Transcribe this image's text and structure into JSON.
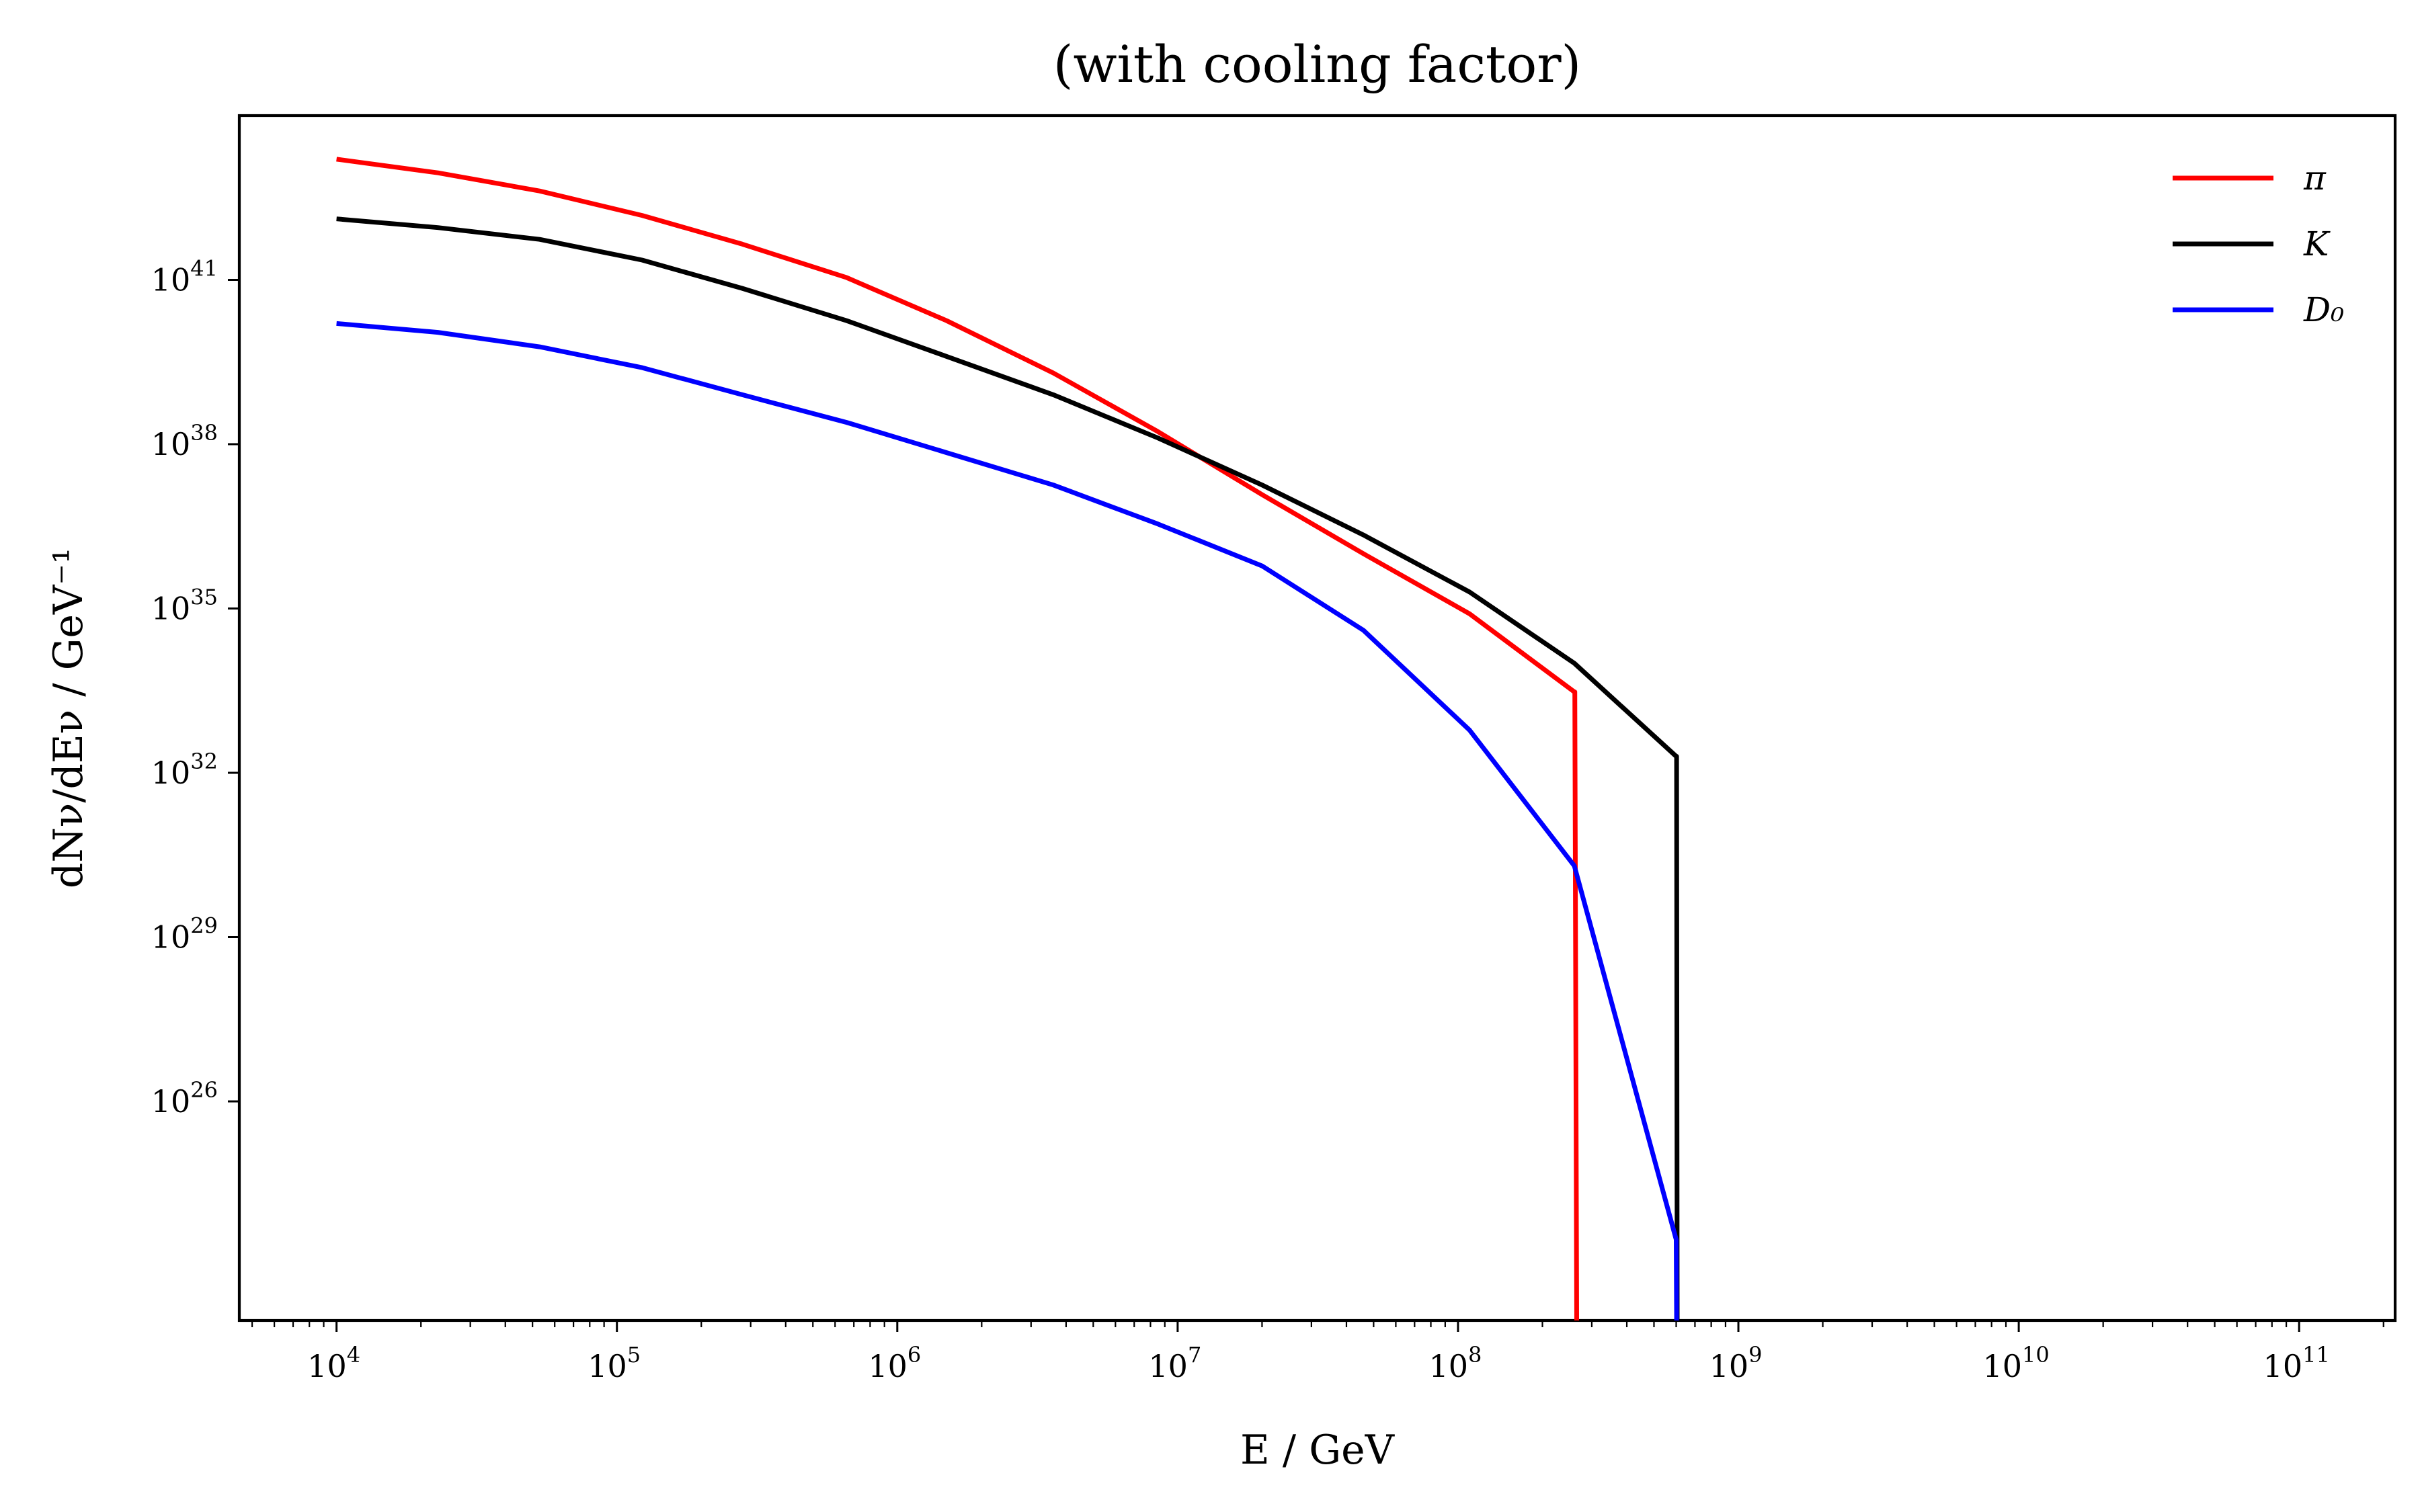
{
  "chart_data": {
    "type": "line",
    "title": "(with cooling factor)",
    "xlabel": "E / GeV",
    "ylabel": "dNν/dEν / GeV⁻¹",
    "x_scale": "log",
    "y_scale": "log",
    "xlim": [
      4500.0,
      220000000000.0
    ],
    "ylim": [
      1e+22,
      1e+44
    ],
    "x_ticks": [
      {
        "base": "10",
        "exp": "4"
      },
      {
        "base": "10",
        "exp": "5"
      },
      {
        "base": "10",
        "exp": "6"
      },
      {
        "base": "10",
        "exp": "7"
      },
      {
        "base": "10",
        "exp": "8"
      },
      {
        "base": "10",
        "exp": "9"
      },
      {
        "base": "10",
        "exp": "10"
      },
      {
        "base": "10",
        "exp": "11"
      }
    ],
    "y_ticks": [
      {
        "base": "10",
        "exp": "26"
      },
      {
        "base": "10",
        "exp": "29"
      },
      {
        "base": "10",
        "exp": "32"
      },
      {
        "base": "10",
        "exp": "35"
      },
      {
        "base": "10",
        "exp": "38"
      },
      {
        "base": "10",
        "exp": "41"
      }
    ],
    "grid": false,
    "legend_position": "top-right",
    "series": [
      {
        "name": "π",
        "color": "#ff0000",
        "points": [
          [
            10000.0,
            1.6e+43
          ],
          [
            23000.0,
            9e+42
          ],
          [
            53000.0,
            4.2e+42
          ],
          [
            123000.0,
            1.5e+42
          ],
          [
            280000.0,
            4.5e+41
          ],
          [
            660000.0,
            1.1e+41
          ],
          [
            1500000.0,
            1.8e+40
          ],
          [
            3600000.0,
            2e+39
          ],
          [
            8500000.0,
            1.7e+38
          ],
          [
            20000000.0,
            1.2e+37
          ],
          [
            46000000.0,
            1e+36
          ],
          [
            110000000.0,
            8e+34
          ],
          [
            260000000.0,
            3e+33
          ],
          [
            261000000.0,
            3e+33
          ],
          [
            265000000.0,
            1e+22
          ]
        ]
      },
      {
        "name": "K",
        "color": "#000000",
        "points": [
          [
            10000.0,
            1.3e+42
          ],
          [
            23000.0,
            9e+41
          ],
          [
            53000.0,
            5.5e+41
          ],
          [
            123000.0,
            2.3e+41
          ],
          [
            280000.0,
            7e+40
          ],
          [
            660000.0,
            1.8e+40
          ],
          [
            1500000.0,
            4e+39
          ],
          [
            3600000.0,
            8e+38
          ],
          [
            8500000.0,
            1.3e+38
          ],
          [
            20000000.0,
            1.8e+37
          ],
          [
            46000000.0,
            2.2e+36
          ],
          [
            110000000.0,
            2e+35
          ],
          [
            260000000.0,
            1e+34
          ],
          [
            600000000.0,
            2e+32
          ],
          [
            602000000.0,
            2e+32
          ],
          [
            605000000.0,
            1e+22
          ]
        ]
      },
      {
        "name": "D₀",
        "color": "#0000ff",
        "points": [
          [
            10000.0,
            1.6e+40
          ],
          [
            23000.0,
            1.1e+40
          ],
          [
            53000.0,
            6e+39
          ],
          [
            123000.0,
            2.5e+39
          ],
          [
            280000.0,
            8e+38
          ],
          [
            660000.0,
            2.5e+38
          ],
          [
            1500000.0,
            7e+37
          ],
          [
            3600000.0,
            1.8e+37
          ],
          [
            8500000.0,
            3.5e+36
          ],
          [
            20000000.0,
            6e+35
          ],
          [
            46000000.0,
            4e+34
          ],
          [
            110000000.0,
            6e+32
          ],
          [
            260000000.0,
            2e+30
          ],
          [
            600000000.0,
            3e+23
          ],
          [
            602000000.0,
            1e+22
          ]
        ]
      }
    ]
  }
}
